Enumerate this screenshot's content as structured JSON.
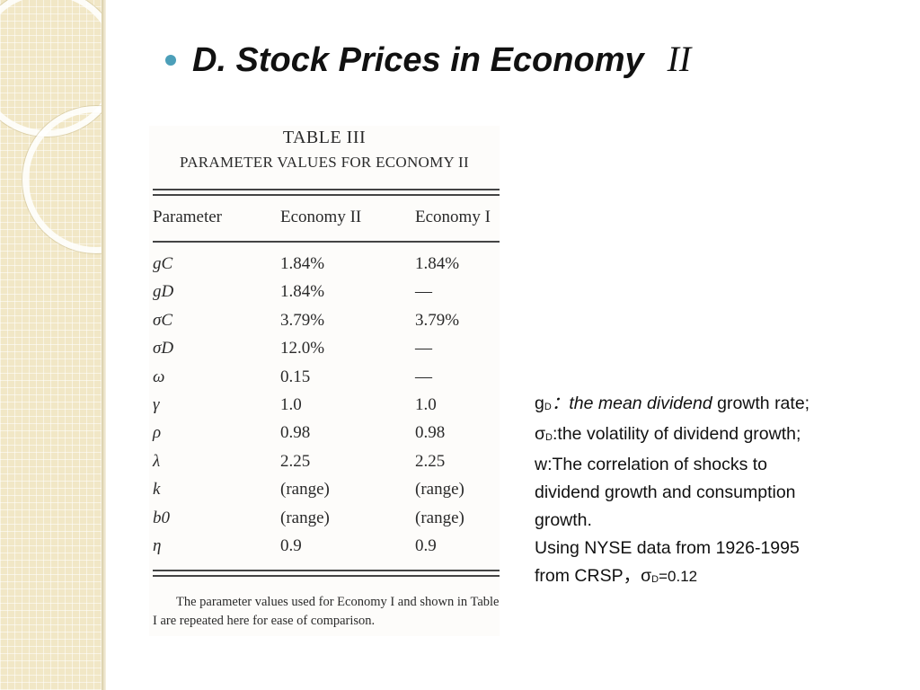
{
  "slide": {
    "title": "D. Stock Prices in Economy",
    "title_roman": "II",
    "bullet_color": "#4c9fb9"
  },
  "table": {
    "caption": "TABLE III",
    "subcaption": "PARAMETER VALUES FOR ECONOMY II",
    "headers": [
      "Parameter",
      "Economy II",
      "Economy I"
    ],
    "rows": [
      {
        "param": "gC",
        "econ2": "1.84%",
        "econ1": "1.84%"
      },
      {
        "param": "gD",
        "econ2": "1.84%",
        "econ1": "—"
      },
      {
        "param": "σC",
        "econ2": "3.79%",
        "econ1": "3.79%"
      },
      {
        "param": "σD",
        "econ2": "12.0%",
        "econ1": "—"
      },
      {
        "param": "ω",
        "econ2": "0.15",
        "econ1": "—"
      },
      {
        "param": "γ",
        "econ2": "1.0",
        "econ1": "1.0"
      },
      {
        "param": "ρ",
        "econ2": "0.98",
        "econ1": "0.98"
      },
      {
        "param": "λ",
        "econ2": "2.25",
        "econ1": "2.25"
      },
      {
        "param": "k",
        "econ2": "(range)",
        "econ1": "(range)"
      },
      {
        "param": "b0",
        "econ2": "(range)",
        "econ1": "(range)"
      },
      {
        "param": "η",
        "econ2": "0.9",
        "econ1": "0.9"
      }
    ],
    "footnote": "The parameter values used for Economy I and shown in Table I are repeated here for ease of comparison."
  },
  "description": {
    "l1_sym": "g",
    "l1_sub": "D",
    "l1_sep": "：",
    "l1_italic": "the mean dividend",
    "l1_rest": " growth rate;",
    "l2_sym": "σ",
    "l2_sub": "D",
    "l2_rest": ":the volatility of dividend growth;",
    "l3": "w:The correlation of shocks to",
    "l4": "dividend growth and consumption",
    "l5": "growth.",
    "l6": "Using NYSE data from 1926-1995",
    "l7_text": "from CRSP，σ",
    "l7_sub": "D",
    "l7_val": "=0.12"
  }
}
